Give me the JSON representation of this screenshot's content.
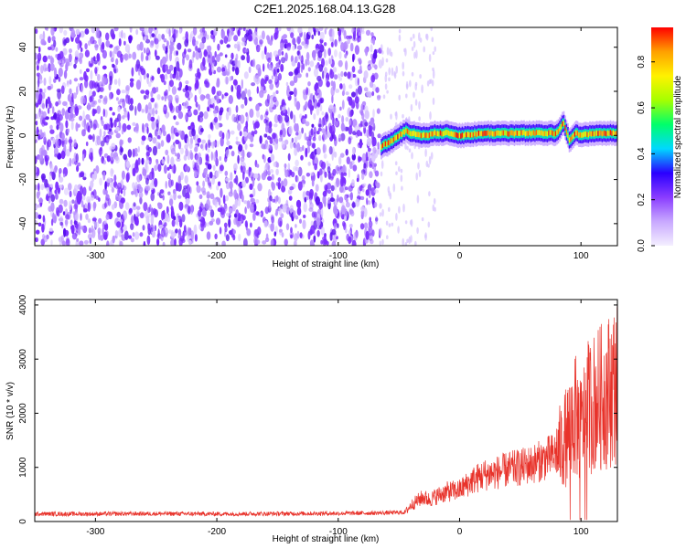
{
  "title": "C2E1.2025.168.04.13.G28",
  "chart_data": [
    {
      "type": "heatmap",
      "xlabel": "Height of straight line (km)",
      "ylabel": "Frequency (Hz)",
      "xlim": [
        -350,
        130
      ],
      "ylim": [
        -50,
        49
      ],
      "xticks": [
        -300,
        -200,
        -100,
        0,
        100
      ],
      "yticks": [
        -40,
        -20,
        0,
        20,
        40
      ],
      "colorbar": {
        "label": "Normalized spectral amplitude",
        "range": [
          0.0,
          0.95
        ],
        "ticks": [
          0.0,
          0.2,
          0.4,
          0.6,
          0.8
        ],
        "colormap": [
          "#f4efff",
          "#c8a8ff",
          "#8a3cff",
          "#2a00ff",
          "#00d8ff",
          "#00ff6a",
          "#a6ff00",
          "#fff200",
          "#ffa000",
          "#ff0000"
        ]
      },
      "noise_region_x": [
        -350,
        -65
      ],
      "signal_trace": {
        "x": [
          -65,
          -58,
          -50,
          -45,
          -40,
          -30,
          -20,
          -10,
          0,
          20,
          40,
          60,
          80,
          85,
          90,
          95,
          100,
          110,
          120,
          130
        ],
        "frequency": [
          -5,
          -3,
          0,
          2,
          1,
          0,
          1,
          1,
          0,
          1,
          1,
          1,
          1,
          6,
          -2,
          1,
          0,
          1,
          1,
          1
        ]
      }
    },
    {
      "type": "line",
      "xlabel": "Height of straight line (km)",
      "ylabel": "SNR (10 * v/v)",
      "xlim": [
        -350,
        130
      ],
      "ylim": [
        0,
        4100
      ],
      "xticks": [
        -300,
        -200,
        -100,
        0,
        100
      ],
      "yticks": [
        0,
        1000,
        2000,
        3000,
        4000
      ],
      "color": "#e8322a",
      "series": [
        {
          "x": [
            -350,
            -300,
            -250,
            -200,
            -150,
            -100,
            -60,
            -45,
            -40,
            -35,
            -30,
            -25,
            -20,
            -10,
            0,
            10,
            20,
            30,
            40,
            50,
            60,
            70,
            80,
            85,
            90,
            95,
            100,
            105,
            110,
            120,
            130
          ],
          "values": [
            140,
            140,
            145,
            140,
            145,
            150,
            160,
            170,
            300,
            380,
            450,
            400,
            460,
            550,
            580,
            750,
            860,
            900,
            960,
            1000,
            1060,
            1150,
            1250,
            1450,
            1700,
            1950,
            1700,
            2100,
            2200,
            2350,
            2600
          ]
        }
      ]
    }
  ]
}
